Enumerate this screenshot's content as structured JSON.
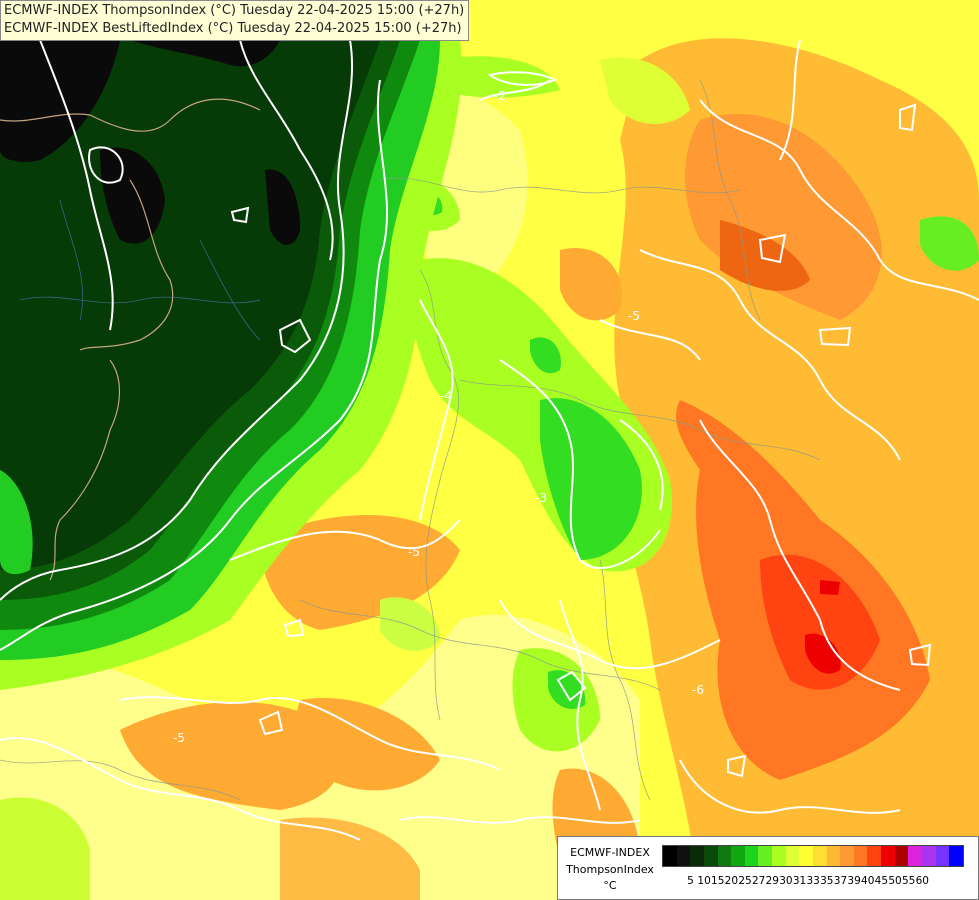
{
  "header": {
    "line1": "ECMWF-INDEX ThompsonIndex (°C) Tuesday 22-04-2025 15:00 (+27h)",
    "line2": "ECMWF-INDEX BestLiftedIndex (°C) Tuesday 22-04-2025 15:00 (+27h)"
  },
  "legend": {
    "title": "ECMWF-INDEX",
    "subtitle": "ThompsonIndex",
    "unit": "°C",
    "ticks": [
      "5",
      "10",
      "15",
      "20",
      "25",
      "27",
      "29",
      "30",
      "31",
      "33",
      "35",
      "37",
      "39",
      "40",
      "45",
      "50",
      "55",
      "60"
    ],
    "colors": [
      "#000000",
      "#101010",
      "#0a2a0a",
      "#0a4a0a",
      "#0f7a0f",
      "#12a812",
      "#1fd41f",
      "#66ee22",
      "#aaff22",
      "#ddff33",
      "#ffff33",
      "#ffdd33",
      "#ffb833",
      "#ff9933",
      "#ff7722",
      "#ff4411",
      "#ee0000",
      "#aa0000",
      "#dd22dd",
      "#aa33ee",
      "#7733ff",
      "#0000ff"
    ]
  },
  "contour_labels": [
    "-5",
    "-4",
    "-3",
    "-2",
    "-6"
  ]
}
